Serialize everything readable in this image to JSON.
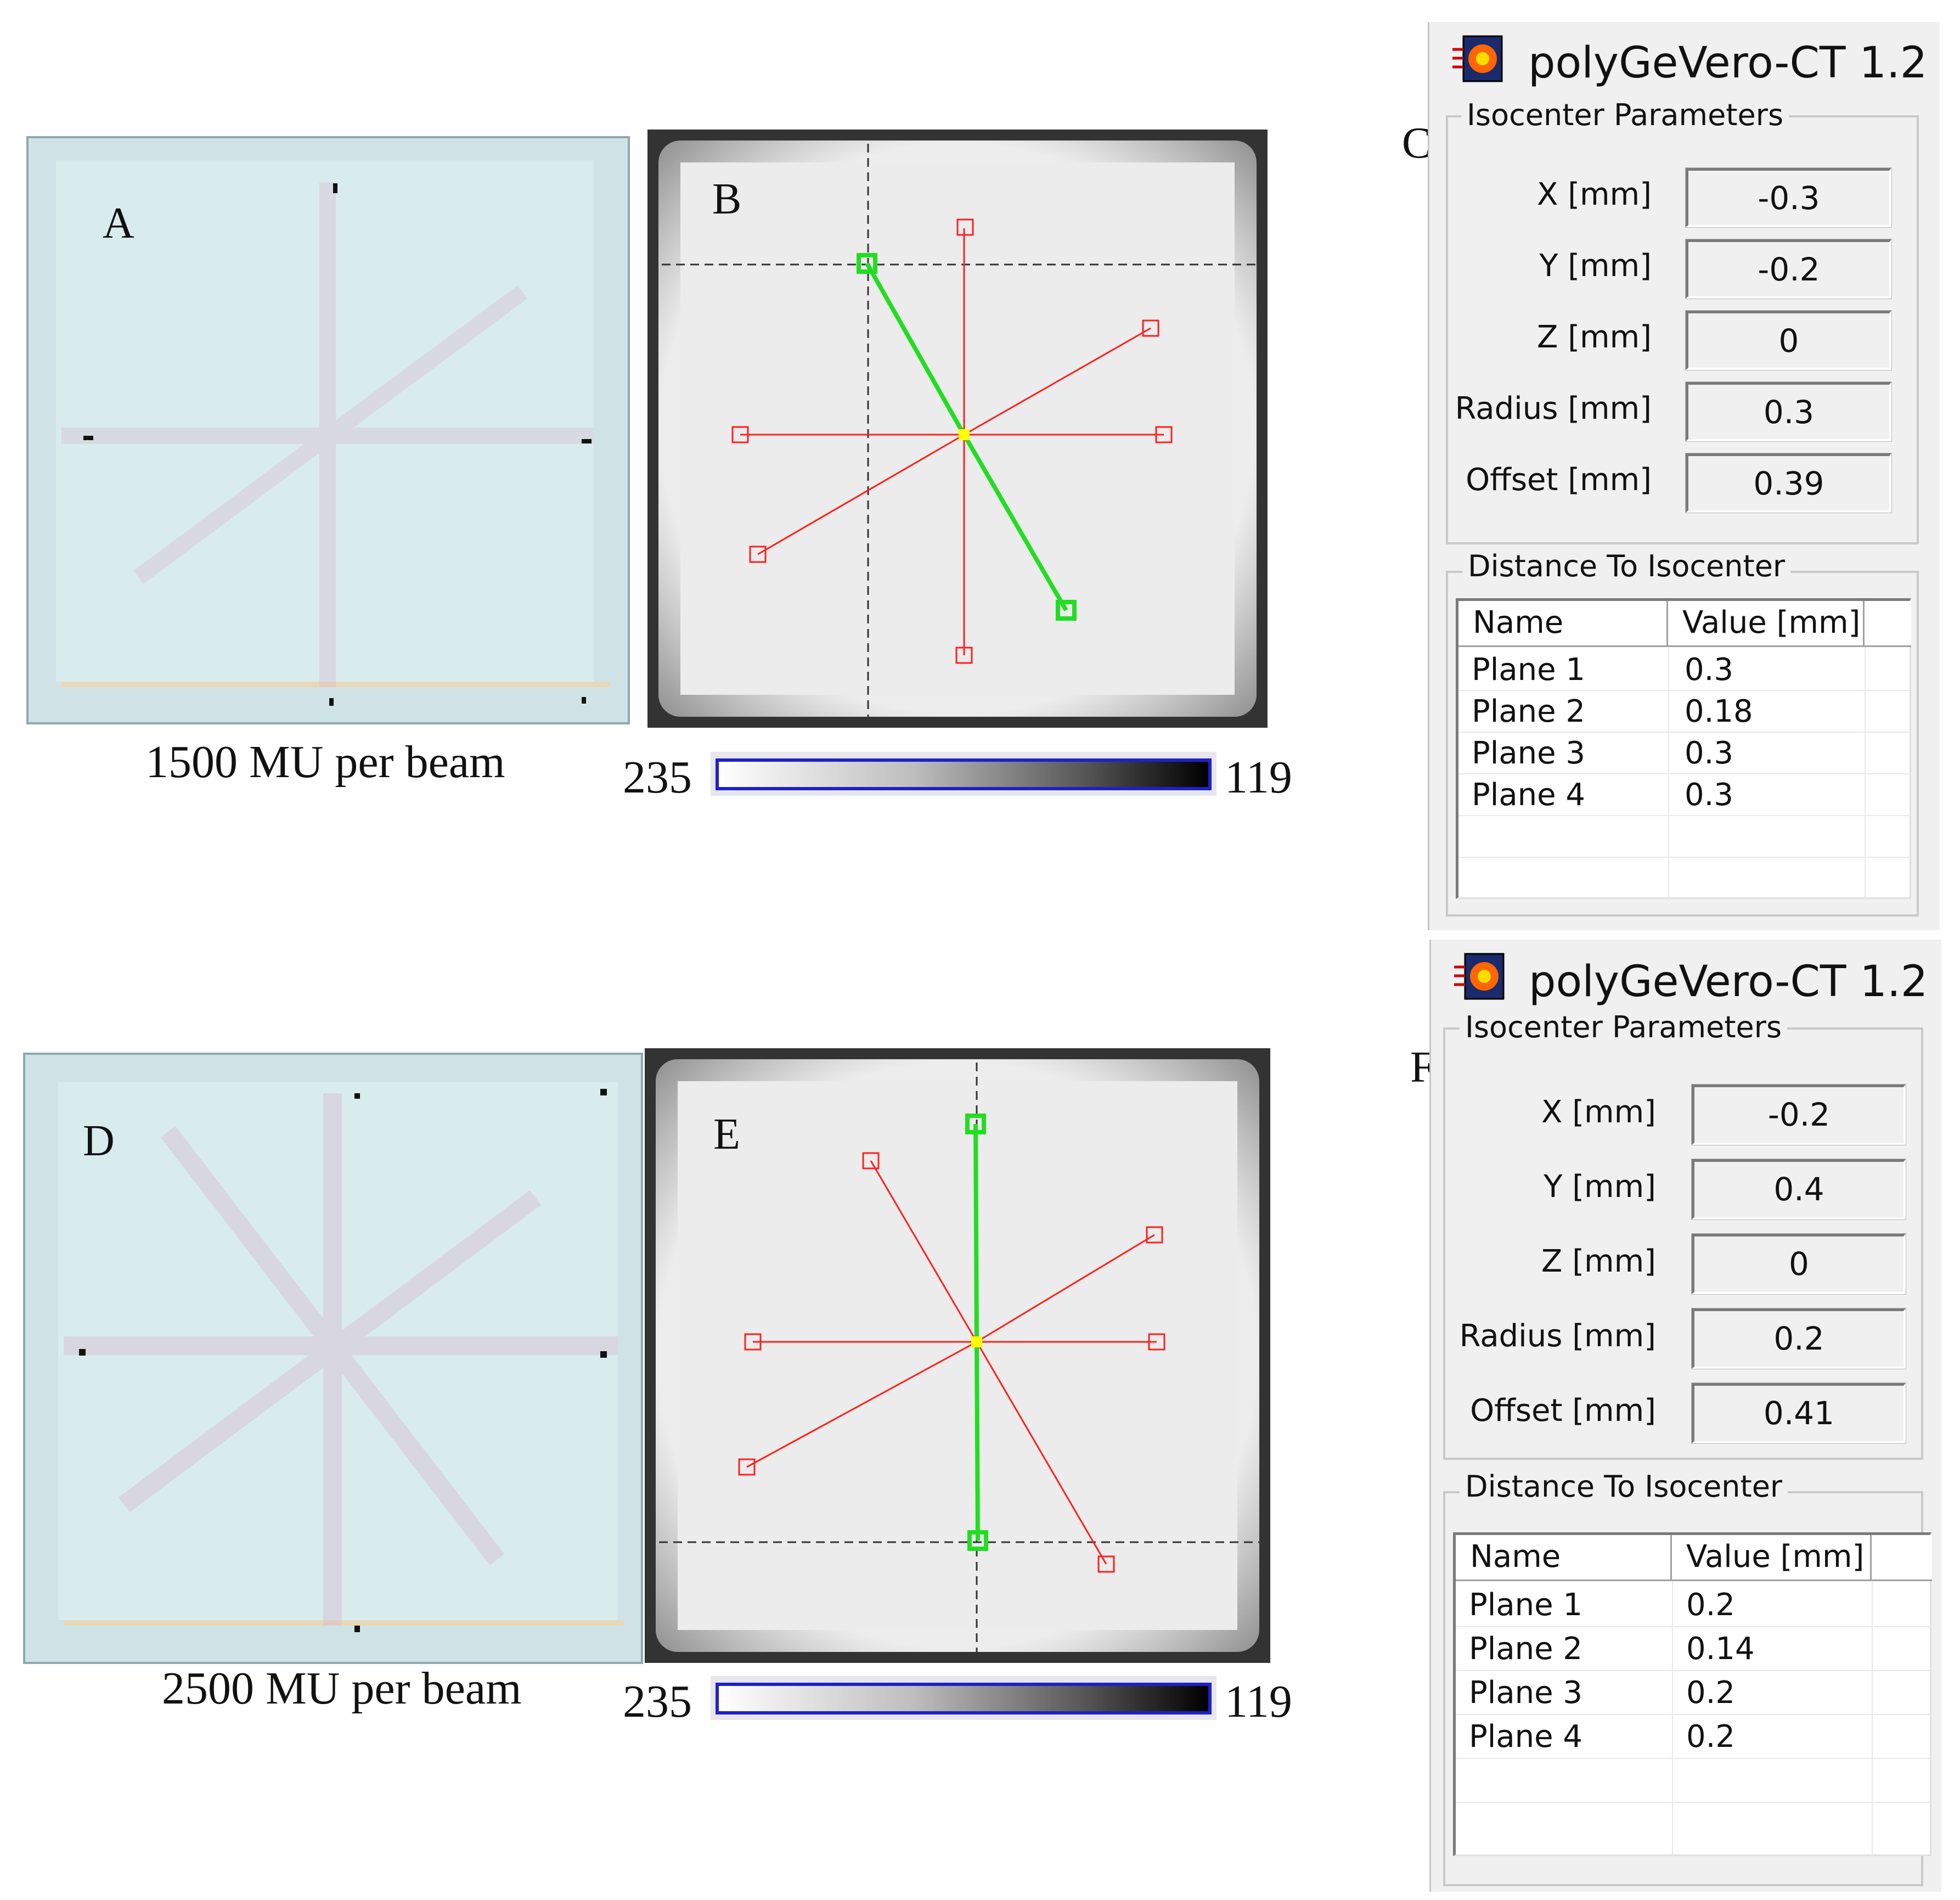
{
  "panels": {
    "a": {
      "letter": "A"
    },
    "b": {
      "letter": "B"
    },
    "c": {
      "letter": "C"
    },
    "d": {
      "letter": "D"
    },
    "e": {
      "letter": "E"
    },
    "f": {
      "letter": "F"
    }
  },
  "captions": {
    "top": "1500 MU per beam",
    "bottom": "2500 MU per beam"
  },
  "colorbar_top": {
    "min_label": "235",
    "max_label": "119"
  },
  "colorbar_bottom": {
    "min_label": "235",
    "max_label": "119"
  },
  "dialog_top": {
    "title": "polyGeVero-CT 1.2",
    "icon": "app-icon",
    "iso_group_title": "Isocenter Parameters",
    "params": [
      {
        "label": "X [mm]",
        "value": "-0.3"
      },
      {
        "label": "Y [mm]",
        "value": "-0.2"
      },
      {
        "label": "Z [mm]",
        "value": "0"
      },
      {
        "label": "Radius [mm]",
        "value": "0.3"
      },
      {
        "label": "Offset [mm]",
        "value": "0.39"
      }
    ],
    "dist_group_title": "Distance To Isocenter",
    "columns": [
      "Name",
      "Value [mm]"
    ],
    "rows": [
      {
        "name": "Plane 1",
        "value": "0.3"
      },
      {
        "name": "Plane 2",
        "value": "0.18"
      },
      {
        "name": "Plane 3",
        "value": "0.3"
      },
      {
        "name": "Plane 4",
        "value": "0.3"
      }
    ]
  },
  "dialog_bottom": {
    "title": "polyGeVero-CT 1.2",
    "icon": "app-icon",
    "iso_group_title": "Isocenter Parameters",
    "params": [
      {
        "label": "X [mm]",
        "value": "-0.2"
      },
      {
        "label": "Y [mm]",
        "value": "0.4"
      },
      {
        "label": "Z [mm]",
        "value": "0"
      },
      {
        "label": "Radius [mm]",
        "value": "0.2"
      },
      {
        "label": "Offset [mm]",
        "value": "0.41"
      }
    ],
    "dist_group_title": "Distance To Isocenter",
    "columns": [
      "Name",
      "Value [mm]"
    ],
    "rows": [
      {
        "name": "Plane 1",
        "value": "0.2"
      },
      {
        "name": "Plane 2",
        "value": "0.14"
      },
      {
        "name": "Plane 3",
        "value": "0.2"
      },
      {
        "name": "Plane 4",
        "value": "0.2"
      }
    ]
  },
  "colors": {
    "beam_line": "#ff2020",
    "selected_beam": "#22dd22",
    "isocenter": "#ffff00",
    "colorbar_border": "#2020c8"
  }
}
